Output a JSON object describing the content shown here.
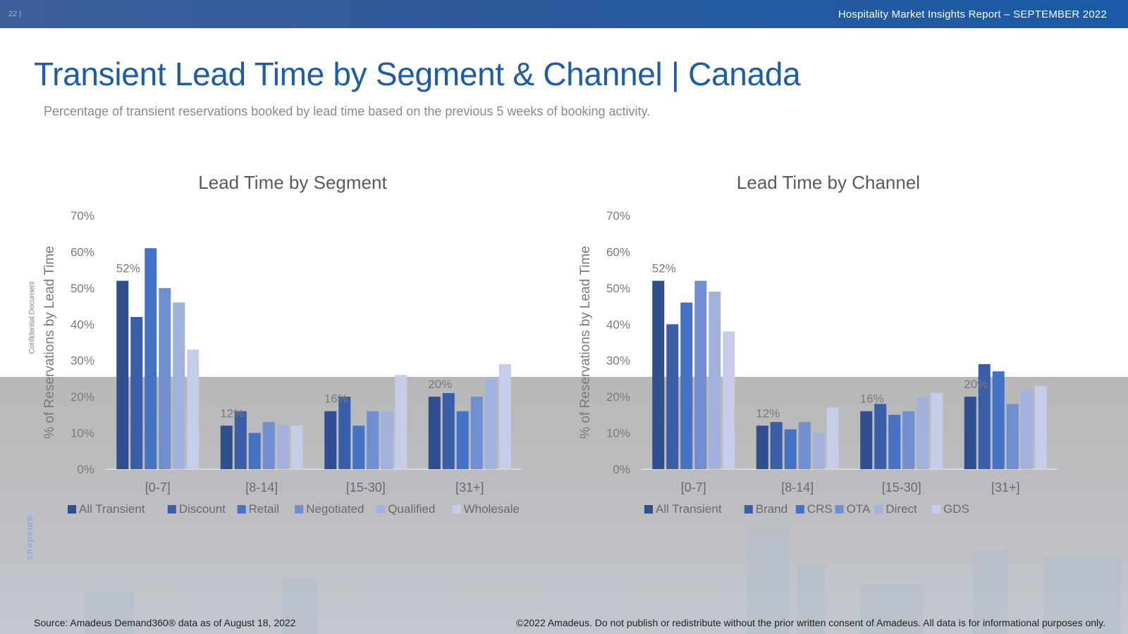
{
  "header": {
    "page_number": "22 |",
    "report_title": "Hospitality Market Insights Report – SEPTEMBER 2022"
  },
  "title": "Transient Lead Time by Segment & Channel | Canada",
  "subtitle": "Percentage of transient reservations booked by lead time based on the previous 5 weeks of booking activity.",
  "side_label": "Confidential Document",
  "logo_text": "amadeus",
  "footer": {
    "source": "Source: Amadeus Demand360® data as of August 18, 2022",
    "copyright": "©2022 Amadeus. Do not publish or redistribute without the prior written consent of Amadeus. All data is for informational purposes only."
  },
  "colors": [
    "#2f4f8f",
    "#3a5da8",
    "#4472c4",
    "#6f8fd0",
    "#a3b2dc",
    "#c5cde8"
  ],
  "chart_data": [
    {
      "type": "bar",
      "title": "Lead Time by Segment",
      "xlabel": "",
      "ylabel": "% of Reservations by Lead Time",
      "ylim": [
        0,
        0.7
      ],
      "yticks": [
        "0%",
        "10%",
        "20%",
        "30%",
        "40%",
        "50%",
        "60%",
        "70%"
      ],
      "categories": [
        "[0-7]",
        "[8-14]",
        "[15-30]",
        "[31+]"
      ],
      "series": [
        {
          "name": "All Transient",
          "values": [
            0.52,
            0.12,
            0.16,
            0.2
          ]
        },
        {
          "name": "Discount",
          "values": [
            0.42,
            0.16,
            0.2,
            0.21
          ]
        },
        {
          "name": "Retail",
          "values": [
            0.61,
            0.1,
            0.12,
            0.16
          ]
        },
        {
          "name": "Negotiated",
          "values": [
            0.5,
            0.13,
            0.16,
            0.2
          ]
        },
        {
          "name": "Qualified",
          "values": [
            0.46,
            0.12,
            0.16,
            0.25
          ]
        },
        {
          "name": "Wholesale",
          "values": [
            0.33,
            0.12,
            0.26,
            0.29
          ]
        }
      ],
      "data_labels": [
        "52%",
        "12%",
        "16%",
        "20%"
      ],
      "legend": "bottom",
      "grid": false
    },
    {
      "type": "bar",
      "title": "Lead Time by Channel",
      "xlabel": "",
      "ylabel": "% of Reservations by Lead Time",
      "ylim": [
        0,
        0.7
      ],
      "yticks": [
        "0%",
        "10%",
        "20%",
        "30%",
        "40%",
        "50%",
        "60%",
        "70%"
      ],
      "categories": [
        "[0-7]",
        "[8-14]",
        "[15-30]",
        "[31+]"
      ],
      "series": [
        {
          "name": "All Transient",
          "values": [
            0.52,
            0.12,
            0.16,
            0.2
          ]
        },
        {
          "name": "Brand",
          "values": [
            0.4,
            0.13,
            0.18,
            0.29
          ]
        },
        {
          "name": "CRS",
          "values": [
            0.46,
            0.11,
            0.15,
            0.27
          ]
        },
        {
          "name": "OTA",
          "values": [
            0.52,
            0.13,
            0.16,
            0.18
          ]
        },
        {
          "name": "Direct",
          "values": [
            0.49,
            0.1,
            0.2,
            0.22
          ]
        },
        {
          "name": "GDS",
          "values": [
            0.38,
            0.17,
            0.21,
            0.23
          ]
        }
      ],
      "data_labels": [
        "52%",
        "12%",
        "16%",
        "20%"
      ],
      "legend": "bottom",
      "grid": false
    }
  ]
}
